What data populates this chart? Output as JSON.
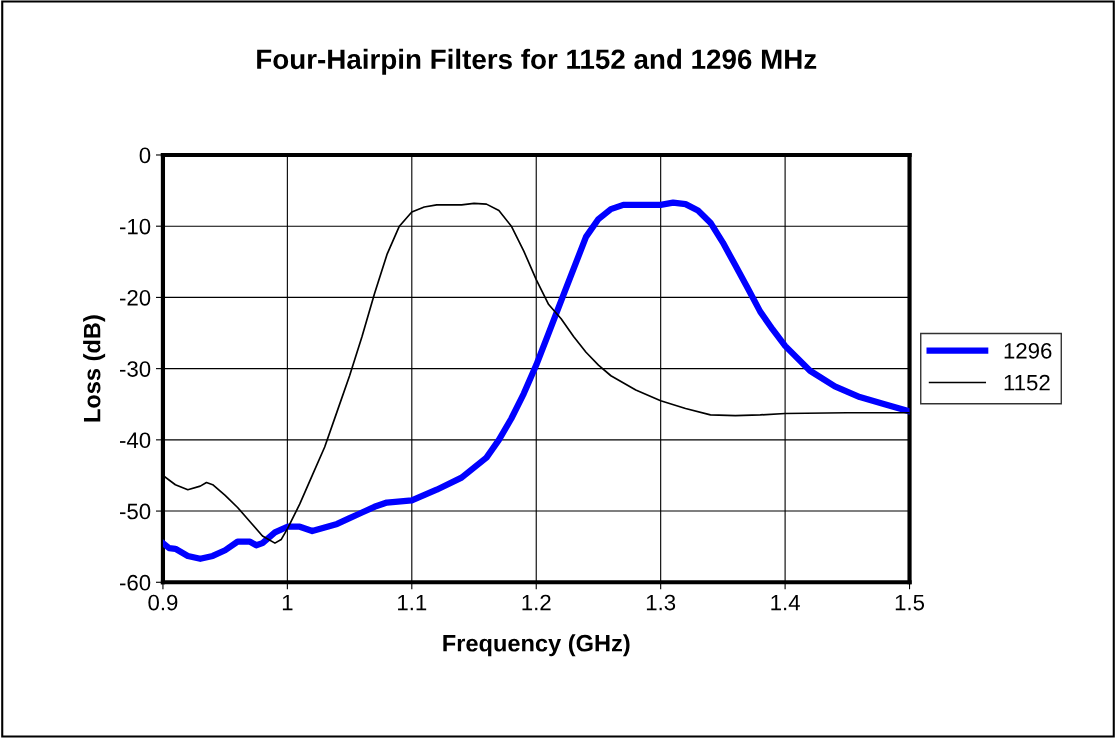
{
  "chart_data": {
    "type": "line",
    "title": "Four-Hairpin Filters for 1152 and 1296 MHz",
    "xlabel": "Frequency (GHz)",
    "ylabel": "Loss (dB)",
    "xlim": [
      0.9,
      1.5
    ],
    "xticks": [
      0.9,
      1,
      1.1,
      1.2,
      1.3,
      1.4,
      1.5
    ],
    "ylim": [
      -60,
      0
    ],
    "yticks": [
      -60,
      -50,
      -40,
      -30,
      -20,
      -10,
      0
    ],
    "grid": true,
    "legend": "right",
    "marker": "none",
    "series": [
      {
        "name": "1296",
        "color": "#0000ff",
        "x": [
          0.9,
          0.905,
          0.91,
          0.92,
          0.93,
          0.94,
          0.95,
          0.96,
          0.97,
          0.975,
          0.98,
          0.99,
          1.0,
          1.01,
          1.02,
          1.03,
          1.04,
          1.05,
          1.06,
          1.07,
          1.08,
          1.1,
          1.12,
          1.14,
          1.16,
          1.17,
          1.18,
          1.19,
          1.2,
          1.21,
          1.22,
          1.23,
          1.24,
          1.25,
          1.26,
          1.27,
          1.3,
          1.31,
          1.32,
          1.33,
          1.34,
          1.35,
          1.36,
          1.37,
          1.38,
          1.39,
          1.4,
          1.42,
          1.44,
          1.46,
          1.48,
          1.5
        ],
        "values": [
          -54.5,
          -55.2,
          -55.3,
          -56.3,
          -56.7,
          -56.3,
          -55.5,
          -54.3,
          -54.3,
          -54.8,
          -54.5,
          -53,
          -52.2,
          -52.2,
          -52.8,
          -52.3,
          -51.8,
          -51,
          -50.2,
          -49.4,
          -48.8,
          -48.5,
          -47,
          -45.3,
          -42.5,
          -40,
          -37,
          -33.5,
          -29.5,
          -25,
          -20.5,
          -16,
          -11.5,
          -9,
          -7.6,
          -7,
          -7,
          -6.7,
          -6.9,
          -7.8,
          -9.5,
          -12.3,
          -15.5,
          -18.7,
          -22,
          -24.5,
          -26.8,
          -30.3,
          -32.5,
          -34,
          -35,
          -36
        ]
      },
      {
        "name": "1152",
        "color": "#000000",
        "x": [
          0.9,
          0.91,
          0.92,
          0.93,
          0.935,
          0.94,
          0.95,
          0.96,
          0.97,
          0.98,
          0.99,
          0.995,
          1.0,
          1.01,
          1.02,
          1.03,
          1.04,
          1.05,
          1.06,
          1.07,
          1.08,
          1.09,
          1.1,
          1.11,
          1.12,
          1.14,
          1.15,
          1.16,
          1.17,
          1.18,
          1.19,
          1.2,
          1.21,
          1.22,
          1.23,
          1.24,
          1.25,
          1.26,
          1.28,
          1.3,
          1.32,
          1.34,
          1.36,
          1.38,
          1.4,
          1.45,
          1.5
        ],
        "values": [
          -45,
          -46.3,
          -47,
          -46.5,
          -46,
          -46.3,
          -47.8,
          -49.5,
          -51.5,
          -53.5,
          -54.5,
          -54,
          -52.5,
          -49,
          -45,
          -41,
          -36,
          -31,
          -25.5,
          -19.5,
          -14,
          -10,
          -8,
          -7.3,
          -7,
          -7,
          -6.8,
          -6.9,
          -7.8,
          -10,
          -13.5,
          -17.5,
          -21,
          -23,
          -25.5,
          -27.7,
          -29.5,
          -31,
          -33,
          -34.5,
          -35.6,
          -36.5,
          -36.6,
          -36.5,
          -36.3,
          -36.2,
          -36.2
        ]
      }
    ]
  }
}
